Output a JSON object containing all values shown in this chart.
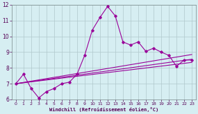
{
  "xlabel": "Windchill (Refroidissement éolien,°C)",
  "bg_color": "#d6eef2",
  "line_color": "#990099",
  "grid_color": "#b0c8cc",
  "xlim": [
    -0.5,
    23.5
  ],
  "ylim": [
    6,
    12
  ],
  "xticks": [
    0,
    1,
    2,
    3,
    4,
    5,
    6,
    7,
    8,
    9,
    10,
    11,
    12,
    13,
    14,
    15,
    16,
    17,
    18,
    19,
    20,
    21,
    22,
    23
  ],
  "yticks": [
    6,
    7,
    8,
    9,
    10,
    11,
    12
  ],
  "main_x": [
    0,
    1,
    2,
    3,
    4,
    5,
    6,
    7,
    8,
    9,
    10,
    11,
    12,
    13,
    14,
    15,
    16,
    17,
    18,
    19,
    20,
    21,
    22,
    23
  ],
  "main_y": [
    7.0,
    7.6,
    6.7,
    6.1,
    6.5,
    6.7,
    7.0,
    7.1,
    7.6,
    8.8,
    10.4,
    11.2,
    11.9,
    11.3,
    9.65,
    9.45,
    9.65,
    9.05,
    9.25,
    9.0,
    8.8,
    8.1,
    8.5,
    8.5
  ],
  "line1_x": [
    0,
    23
  ],
  "line1_y": [
    7.0,
    8.85
  ],
  "line2_x": [
    0,
    23
  ],
  "line2_y": [
    7.0,
    8.55
  ],
  "line3_x": [
    0,
    23
  ],
  "line3_y": [
    7.0,
    8.35
  ]
}
